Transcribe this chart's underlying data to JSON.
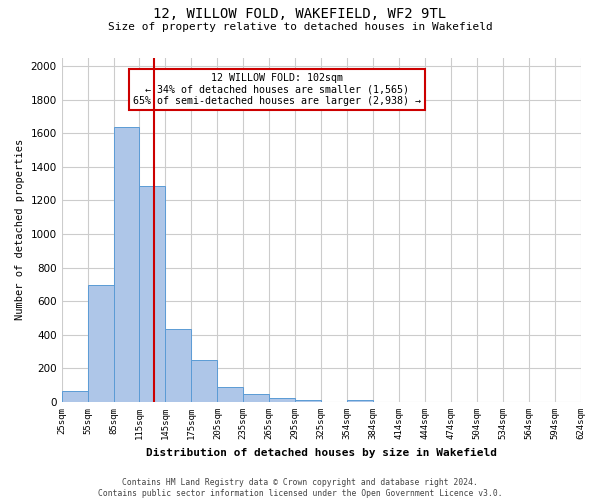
{
  "title": "12, WILLOW FOLD, WAKEFIELD, WF2 9TL",
  "subtitle": "Size of property relative to detached houses in Wakefield",
  "xlabel": "Distribution of detached houses by size in Wakefield",
  "ylabel": "Number of detached properties",
  "bar_values": [
    65,
    695,
    1635,
    1285,
    435,
    250,
    90,
    50,
    25,
    15,
    0,
    10,
    0,
    0,
    0,
    0,
    0,
    0,
    0,
    0
  ],
  "bin_labels": [
    "25sqm",
    "55sqm",
    "85sqm",
    "115sqm",
    "145sqm",
    "175sqm",
    "205sqm",
    "235sqm",
    "265sqm",
    "295sqm",
    "325sqm",
    "354sqm",
    "384sqm",
    "414sqm",
    "444sqm",
    "474sqm",
    "504sqm",
    "534sqm",
    "564sqm",
    "594sqm",
    "624sqm"
  ],
  "bar_color": "#aec6e8",
  "bar_edge_color": "#5b9bd5",
  "ylim": [
    0,
    2050
  ],
  "yticks": [
    0,
    200,
    400,
    600,
    800,
    1000,
    1200,
    1400,
    1600,
    1800,
    2000
  ],
  "property_line_x": 3,
  "property_line_color": "#cc0000",
  "annotation_text": "12 WILLOW FOLD: 102sqm\n← 34% of detached houses are smaller (1,565)\n65% of semi-detached houses are larger (2,938) →",
  "annotation_box_color": "#ffffff",
  "annotation_box_edge_color": "#cc0000",
  "footnote": "Contains HM Land Registry data © Crown copyright and database right 2024.\nContains public sector information licensed under the Open Government Licence v3.0.",
  "background_color": "#ffffff",
  "grid_color": "#cccccc"
}
